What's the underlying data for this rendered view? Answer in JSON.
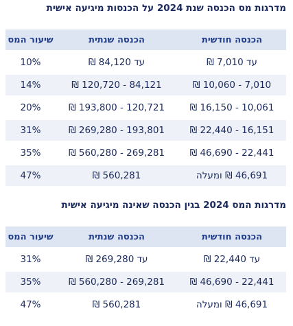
{
  "tables": [
    {
      "title": "מדרגות מס הכנסה שנת 2024 על הכנסות מיגיעה אישית",
      "headers": {
        "monthly": "הכנסה חודשית",
        "annual": "הכנסה שנתית",
        "rate": "שיעור המס"
      },
      "rows": [
        {
          "monthly": "עד 7,010 ₪",
          "annual": "עד 84,120 ₪",
          "rate": "10%"
        },
        {
          "monthly": "7,010 - 10,060 ₪",
          "annual": "84,121 - 120,720 ₪",
          "rate": "14%"
        },
        {
          "monthly": "10,061 - 16,150 ₪",
          "annual": "120,721 - 193,800 ₪",
          "rate": "20%"
        },
        {
          "monthly": "16,151 - 22,440 ₪",
          "annual": "193,801 - 269,280 ₪",
          "rate": "31%"
        },
        {
          "monthly": "22,441 - 46,690 ₪",
          "annual": "269,281 - 560,280 ₪",
          "rate": "35%"
        },
        {
          "monthly": "46,691 ₪ ומעלה",
          "annual": "560,281 ₪",
          "rate": "47%"
        }
      ]
    },
    {
      "title": "מדרגות המס 2024 בגין הכנסה שאינה מיגיעה אישית",
      "headers": {
        "monthly": "הכנסה חודשית",
        "annual": "הכנסה שנתית",
        "rate": "שיעור המס"
      },
      "rows": [
        {
          "monthly": "עד 22,440 ₪",
          "annual": "עד 269,280 ₪",
          "rate": "31%"
        },
        {
          "monthly": "22,441 - 46,690 ₪",
          "annual": "269,281 - 560,280 ₪",
          "rate": "35%"
        },
        {
          "monthly": "46,691 ₪ ומעלה",
          "annual": "560,281 ₪",
          "rate": "47%"
        }
      ]
    }
  ],
  "colors": {
    "title": "#1b2a5c",
    "header_bg": "#dde4f2",
    "header_text": "#1f3c88",
    "row_alt_bg": "#eef1f7",
    "cell_text": "#1b2a5c"
  }
}
